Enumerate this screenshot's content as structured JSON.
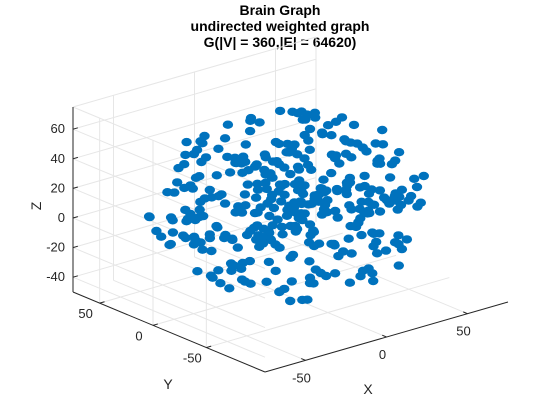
{
  "chart_data": {
    "type": "scatter",
    "title": "Brain Graph",
    "subtitle_lines": [
      "undirected weighted graph",
      "G(|V| = 360,|E| = 64620)"
    ],
    "xlabel": "X",
    "ylabel": "Y",
    "zlabel": "Z",
    "xlim": [
      -75,
      75
    ],
    "ylim": [
      -105,
      75
    ],
    "zlim": [
      -50,
      75
    ],
    "x_ticks": [
      -50,
      0,
      50
    ],
    "y_ticks": [
      -50,
      0,
      50
    ],
    "z_ticks": [
      -40,
      -20,
      0,
      20,
      40,
      60
    ],
    "grid": true,
    "projection": "3d",
    "marker_color": "#0072BD",
    "n_points": 360,
    "point_cloud": "ellipsoid-like brain shape, approx. x in [-68,68], y in [-100,70], z in [-45,70]"
  },
  "colors": {
    "axis": "#262626",
    "grid": "#e6e6e6",
    "markers": "#0072BD"
  }
}
